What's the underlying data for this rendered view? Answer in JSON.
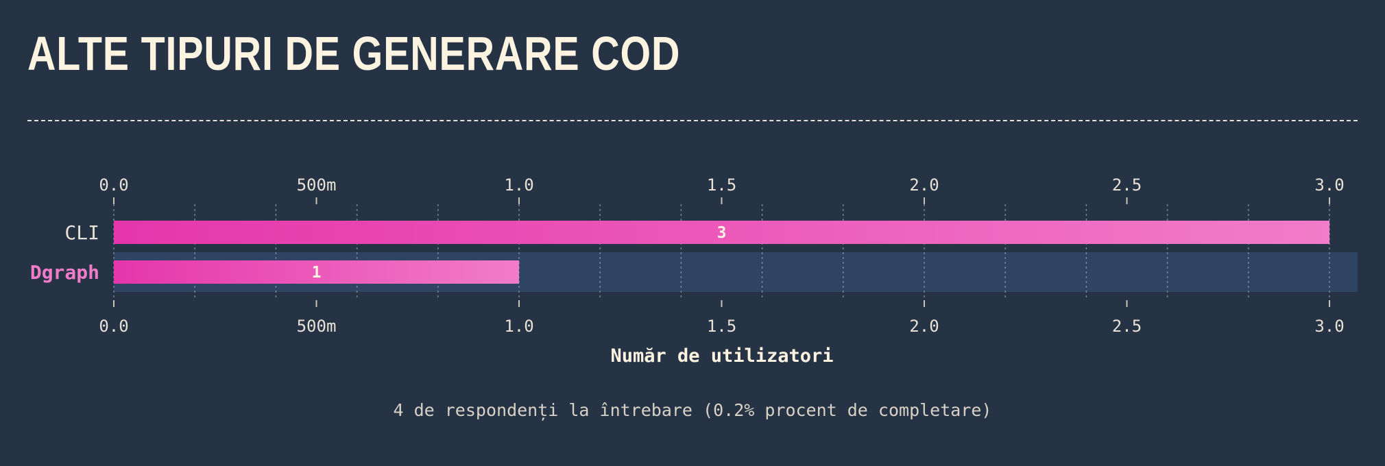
{
  "title": "ALTE TIPURI DE GENERARE COD",
  "footnote": "4 de respondenți la întrebare (0.2% procent de completare)",
  "colors": {
    "background": "#253345",
    "bar_start": "#e536ab",
    "bar_end": "#f27cc9",
    "highlight_row": "#2e4462",
    "highlight_label": "#f27cc9",
    "text": "#fdf3e1"
  },
  "chart_data": {
    "type": "bar",
    "orientation": "horizontal",
    "categories": [
      "CLI",
      "Dgraph"
    ],
    "values": [
      3,
      1
    ],
    "value_labels": [
      "3",
      "1"
    ],
    "highlighted_category": "Dgraph",
    "xlabel": "Număr de utilizatori",
    "xlim": [
      0,
      3
    ],
    "xticks": [
      0,
      0.5,
      1,
      1.5,
      2,
      2.5,
      3
    ],
    "xtick_labels": [
      "0.0",
      "500m",
      "1.0",
      "1.5",
      "2.0",
      "2.5",
      "3.0"
    ],
    "axis_ticks_position": "top and bottom",
    "minor_grid": true
  }
}
